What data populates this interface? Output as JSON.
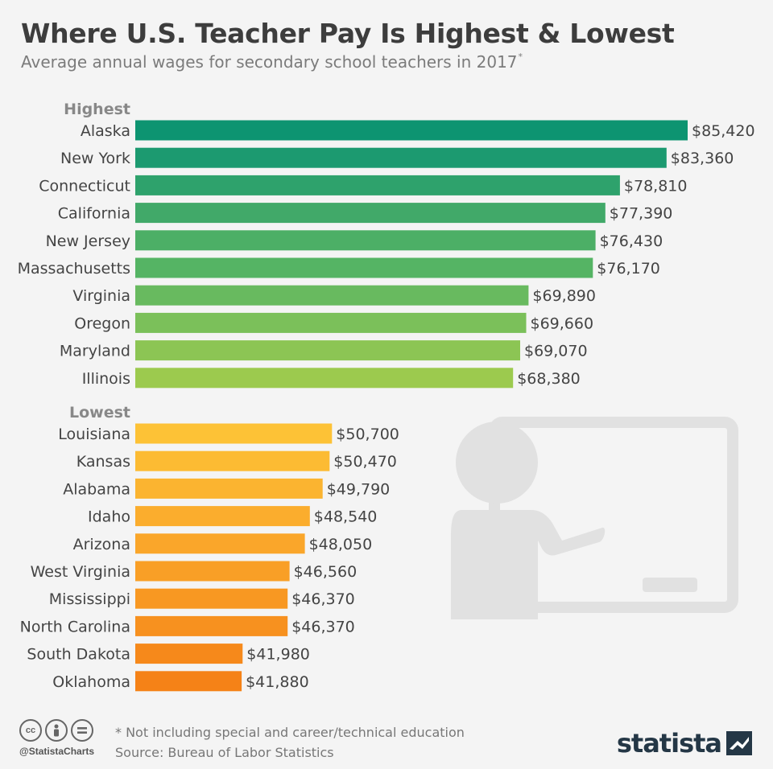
{
  "header": {
    "title": "Where U.S. Teacher Pay Is Highest & Lowest",
    "subtitle": "Average annual wages for secondary school teachers in 2017",
    "subtitle_mark": "*"
  },
  "chart_data": {
    "type": "bar",
    "orientation": "horizontal",
    "value_prefix": "$",
    "groups": [
      {
        "label": "Highest",
        "categories": [
          "Alaska",
          "New York",
          "Connecticut",
          "California",
          "New Jersey",
          "Massachusetts",
          "Virginia",
          "Oregon",
          "Maryland",
          "Illinois"
        ],
        "values": [
          85420,
          83360,
          78810,
          77390,
          76430,
          76170,
          69890,
          69660,
          69070,
          68380
        ],
        "colors": [
          "#0d9471",
          "#1c9a70",
          "#2ea26c",
          "#41a969",
          "#4caf66",
          "#55b464",
          "#68ba5f",
          "#7bc05a",
          "#8cc554",
          "#9cca4e"
        ]
      },
      {
        "label": "Lowest",
        "categories": [
          "Louisiana",
          "Kansas",
          "Alabama",
          "Idaho",
          "Arizona",
          "West Virginia",
          "Mississippi",
          "North Carolina",
          "South Dakota",
          "Oklahoma"
        ],
        "values": [
          50700,
          50470,
          49790,
          48540,
          48050,
          46560,
          46370,
          46370,
          41980,
          41880
        ],
        "colors": [
          "#fdc236",
          "#fcbb33",
          "#fbb430",
          "#fbad2d",
          "#faa62a",
          "#f99f26",
          "#f89822",
          "#f7911f",
          "#f6891b",
          "#f58217"
        ]
      }
    ]
  },
  "footer": {
    "note": "* Not including special and career/technical education",
    "source": "Source: Bureau of Labor Statistics",
    "handle": "@StatistaCharts",
    "brand": "statista",
    "license_icons": [
      "cc-icon",
      "by-icon",
      "nd-icon"
    ]
  }
}
